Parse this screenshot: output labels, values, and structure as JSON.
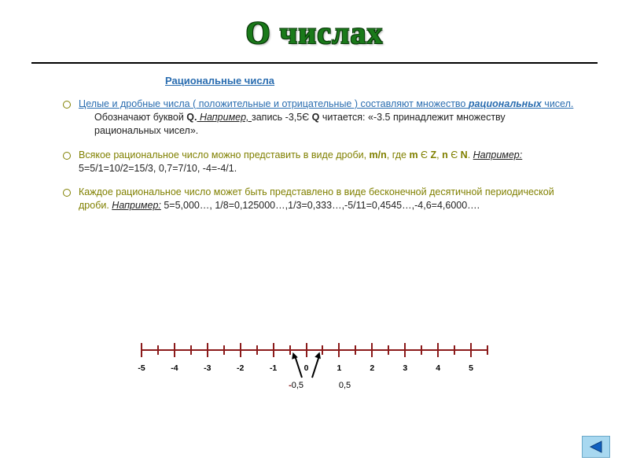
{
  "title": "О числах",
  "subtitle": "Рациональные числа",
  "bullets": {
    "b1": {
      "lead": "Целые и дробные числа ( положительные и отрицательные ) составляют множество ",
      "emph": "рациональных",
      "tail": " чисел.",
      "line2a": "Обозначают буквой ",
      "q": "Q.",
      "eg": "  Например, ",
      "line2b": "запись -3,5Є ",
      "q2": "Q",
      "line2c": " читается: «-3.5 принадлежит множеству рациональных чисел»."
    },
    "b2": {
      "lead": "Всякое рациональное число можно представить в виде дроби, ",
      "mn": "m/n",
      "mid1": ", где ",
      "m": "m",
      "in1": " Є ",
      "Z": "Z",
      "mid2": ", ",
      "n": "n",
      "in2": " Є ",
      "N": "N",
      "dot": ". ",
      "eg": " Например:",
      "tail": " 5=5/1=10/2=15/3, 0,7=7/10, -4=-4/1."
    },
    "b3": {
      "lead": "Каждое рациональное число может быть представлено в виде бесконечной десятичной периодической дроби. ",
      "eg": " Например:",
      "tail": " 5=5,000…, 1/8=0,125000…,1/3=0,333…,-5/11=0,4545…,-4,6=4,6000…."
    }
  },
  "numberline": {
    "axis_color": "#8b1a1a",
    "range": [
      -5,
      5
    ],
    "major_labels": [
      "-5",
      "-4",
      "-3",
      "-2",
      "-1",
      "0",
      "1",
      "2",
      "3",
      "4",
      "5"
    ],
    "arrow_left_label_neg": "-",
    "arrow_left_label": "0,5",
    "arrow_right_label": "0,5"
  },
  "nav": {
    "back_icon": "triangle-left"
  }
}
